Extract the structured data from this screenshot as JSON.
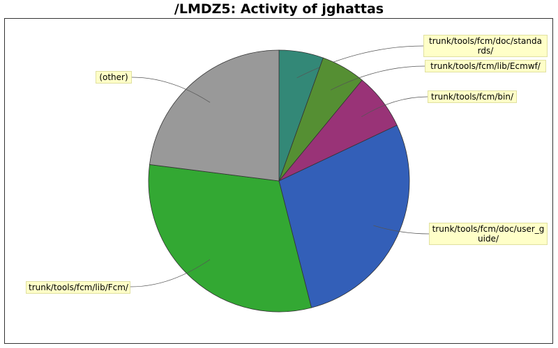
{
  "title": "/LMDZ5: Activity of jghattas",
  "chart_data": {
    "type": "pie",
    "title": "/LMDZ5: Activity of jghattas",
    "start_angle_deg": 0,
    "direction": "clockwise",
    "slices": [
      {
        "label": "trunk/tools/fcm/doc/standards/",
        "label_lines": [
          "trunk/tools/fcm/doc/standa",
          "rds/"
        ],
        "value": 5.5,
        "color": "#338877"
      },
      {
        "label": "trunk/tools/fcm/lib/Ecmwf/",
        "label_lines": [
          "trunk/tools/fcm/lib/Ecmwf/"
        ],
        "value": 5.5,
        "color": "#558f33"
      },
      {
        "label": "trunk/tools/fcm/bin/",
        "label_lines": [
          "trunk/tools/fcm/bin/"
        ],
        "value": 7.0,
        "color": "#993377"
      },
      {
        "label": "trunk/tools/fcm/doc/user_guide/",
        "label_lines": [
          "trunk/tools/fcm/doc/user_g",
          "uide/"
        ],
        "value": 28.0,
        "color": "#335fb8"
      },
      {
        "label": "trunk/tools/fcm/lib/Fcm/",
        "label_lines": [
          "trunk/tools/fcm/lib/Fcm/"
        ],
        "value": 31.0,
        "color": "#33a833"
      },
      {
        "label": "(other)",
        "label_lines": [
          "(other)"
        ],
        "value": 23.0,
        "color": "#999999"
      }
    ]
  }
}
